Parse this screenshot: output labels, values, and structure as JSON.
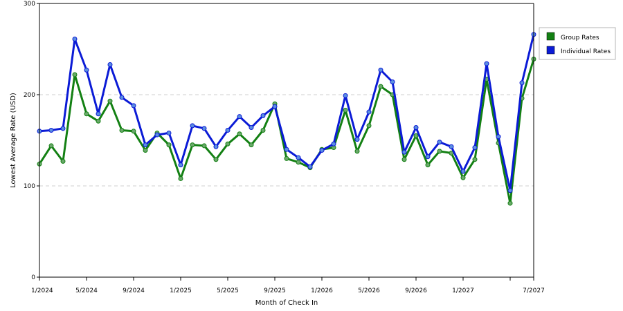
{
  "chart_data": {
    "type": "line",
    "title": "",
    "xlabel": "Month of Check In",
    "ylabel": "Lowest Average Rate (USD)",
    "ylim": [
      0,
      300
    ],
    "y_ticks": [
      "0",
      "100",
      "200",
      "300"
    ],
    "grid": "horizontal dashed at 100 and 200",
    "legend_position": "right",
    "x_tick_labels": [
      {
        "index": 0,
        "label": "1/2024"
      },
      {
        "index": 4,
        "label": "5/2024"
      },
      {
        "index": 8,
        "label": "9/2024"
      },
      {
        "index": 12,
        "label": "1/2025"
      },
      {
        "index": 16,
        "label": "5/2025"
      },
      {
        "index": 20,
        "label": "9/2025"
      },
      {
        "index": 24,
        "label": "1/2026"
      },
      {
        "index": 28,
        "label": "5/2026"
      },
      {
        "index": 32,
        "label": "9/2026"
      },
      {
        "index": 36,
        "label": "1/2027"
      },
      {
        "index": 40,
        "label": ""
      },
      {
        "index": 42,
        "label": "7/2027"
      }
    ],
    "x_count": 43,
    "series": [
      {
        "name": "Group Rates",
        "color": "#138013",
        "marker_color": "#6aa86a",
        "values": [
          124,
          144,
          127,
          222,
          179,
          171,
          193,
          161,
          160,
          139,
          158,
          145,
          108,
          145,
          144,
          129,
          146,
          157,
          145,
          161,
          190,
          130,
          126,
          120,
          140,
          142,
          183,
          138,
          166,
          209,
          200,
          129,
          155,
          123,
          138,
          136,
          109,
          129,
          217,
          147,
          81,
          196,
          239
        ]
      },
      {
        "name": "Individual Rates",
        "color": "#0b1bd6",
        "marker_color": "#5b8ee0",
        "values": [
          160,
          161,
          163,
          261,
          227,
          179,
          233,
          197,
          188,
          145,
          156,
          158,
          123,
          166,
          163,
          143,
          161,
          176,
          164,
          177,
          187,
          140,
          131,
          121,
          139,
          146,
          199,
          151,
          181,
          227,
          214,
          137,
          164,
          132,
          148,
          143,
          116,
          142,
          234,
          154,
          95,
          213,
          266
        ]
      }
    ]
  }
}
